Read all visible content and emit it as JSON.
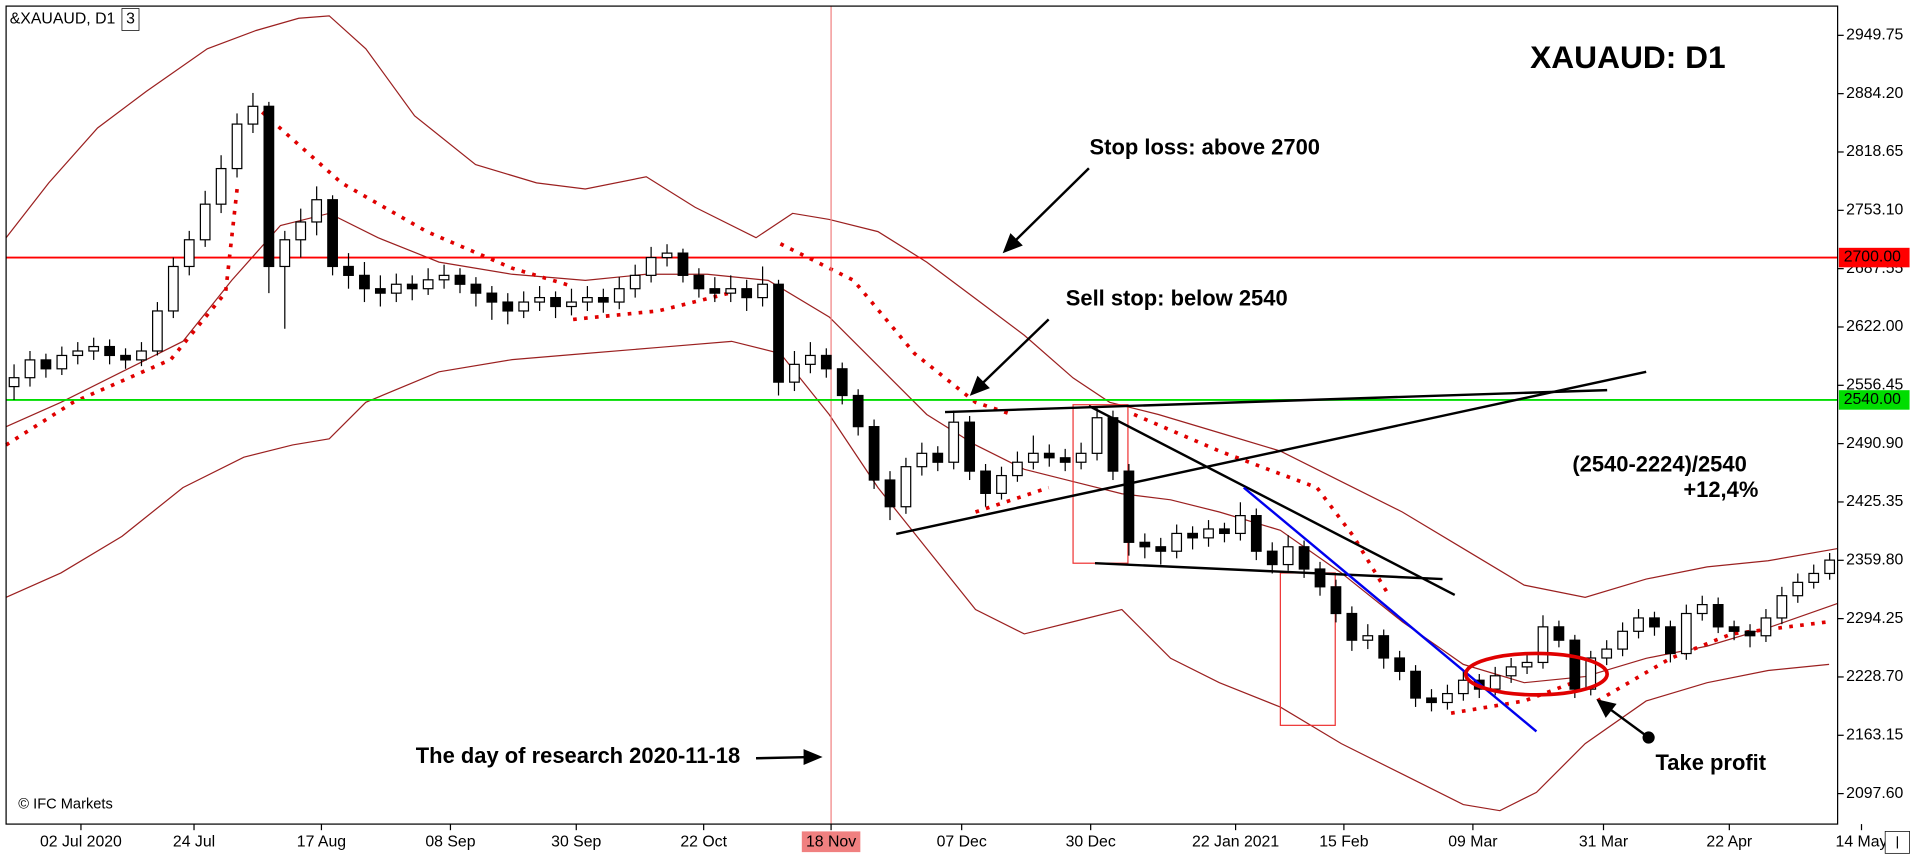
{
  "chart_data": {
    "type": "candlestick",
    "title": "XAUAUD: D1",
    "symbol": "&XAUAUD, D1",
    "window": "3",
    "credit": "© IFC Markets",
    "annotations": [
      "Stop loss: above 2700",
      "Sell stop: below 2540",
      "(2540-2224)/2540",
      "+12,4%",
      "Take profit",
      "The day of research 2020-11-18"
    ],
    "ylim": [
      2063.35,
      2982.6
    ],
    "yticks": [
      {
        "value": 2949.75,
        "label": "2949.75"
      },
      {
        "value": 2884.2,
        "label": "2884.20"
      },
      {
        "value": 2818.65,
        "label": "2818.65"
      },
      {
        "value": 2753.1,
        "label": "2753.10"
      },
      {
        "value": 2687.55,
        "label": "2687.55"
      },
      {
        "value": 2622,
        "label": "2622.00"
      },
      {
        "value": 2556.45,
        "label": "2556.45"
      },
      {
        "value": 2490.9,
        "label": "2490.90"
      },
      {
        "value": 2425.35,
        "label": "2425.35"
      },
      {
        "value": 2359.8,
        "label": "2359.80"
      },
      {
        "value": 2294.25,
        "label": "2294.25"
      },
      {
        "value": 2228.7,
        "label": "2228.70"
      },
      {
        "value": 2163.15,
        "label": "2163.15"
      },
      {
        "value": 2097.6,
        "label": "2097.60"
      }
    ],
    "xlim": [
      0,
      115
    ],
    "xticks": [
      {
        "value": 4.7,
        "label": "02 Jul 2020"
      },
      {
        "value": 11.8,
        "label": "24 Jul"
      },
      {
        "value": 19.8,
        "label": "17 Aug"
      },
      {
        "value": 27.9,
        "label": "08 Sep"
      },
      {
        "value": 35.8,
        "label": "30 Sep"
      },
      {
        "value": 43.8,
        "label": "22 Oct"
      },
      {
        "value": 51.8,
        "label": "18 Nov"
      },
      {
        "value": 60,
        "label": "07 Dec"
      },
      {
        "value": 68.1,
        "label": "30 Dec"
      },
      {
        "value": 77.2,
        "label": "22 Jan 2021"
      },
      {
        "value": 84,
        "label": "15 Feb"
      },
      {
        "value": 92.1,
        "label": "09 Mar"
      },
      {
        "value": 100.3,
        "label": "31 Mar"
      },
      {
        "value": 108.2,
        "label": "22 Apr"
      },
      {
        "value": 116.5,
        "label": "14 May"
      }
    ],
    "cursor_line": {
      "x": 51.8,
      "color": "#f08080"
    },
    "levels": [
      {
        "value": 2700,
        "label": "2700.00",
        "color": "#ff0000"
      },
      {
        "value": 2540,
        "label": "2540.00",
        "color": "#00dd00"
      }
    ],
    "bull_color": "#ffffff",
    "bear_color": "#000000",
    "candles": [
      [
        2555,
        2580,
        2540,
        2565
      ],
      [
        2565,
        2595,
        2555,
        2585
      ],
      [
        2585,
        2592,
        2565,
        2575
      ],
      [
        2575,
        2600,
        2568,
        2590
      ],
      [
        2590,
        2605,
        2580,
        2595
      ],
      [
        2595,
        2610,
        2585,
        2600
      ],
      [
        2600,
        2608,
        2580,
        2590
      ],
      [
        2590,
        2598,
        2575,
        2585
      ],
      [
        2585,
        2605,
        2578,
        2595
      ],
      [
        2595,
        2650,
        2590,
        2640
      ],
      [
        2640,
        2700,
        2632,
        2690
      ],
      [
        2690,
        2730,
        2680,
        2720
      ],
      [
        2720,
        2775,
        2712,
        2760
      ],
      [
        2760,
        2815,
        2750,
        2800
      ],
      [
        2800,
        2862,
        2790,
        2850
      ],
      [
        2850,
        2885,
        2840,
        2870
      ],
      [
        2870,
        2875,
        2660,
        2690
      ],
      [
        2690,
        2730,
        2620,
        2720
      ],
      [
        2720,
        2755,
        2700,
        2740
      ],
      [
        2740,
        2780,
        2725,
        2765
      ],
      [
        2765,
        2770,
        2680,
        2690
      ],
      [
        2690,
        2705,
        2665,
        2680
      ],
      [
        2680,
        2695,
        2650,
        2665
      ],
      [
        2665,
        2680,
        2645,
        2660
      ],
      [
        2660,
        2682,
        2650,
        2670
      ],
      [
        2670,
        2680,
        2652,
        2665
      ],
      [
        2665,
        2688,
        2658,
        2675
      ],
      [
        2675,
        2692,
        2665,
        2680
      ],
      [
        2680,
        2688,
        2660,
        2670
      ],
      [
        2670,
        2678,
        2645,
        2660
      ],
      [
        2660,
        2668,
        2630,
        2650
      ],
      [
        2650,
        2660,
        2625,
        2640
      ],
      [
        2640,
        2662,
        2632,
        2650
      ],
      [
        2650,
        2668,
        2640,
        2655
      ],
      [
        2655,
        2662,
        2632,
        2645
      ],
      [
        2645,
        2665,
        2635,
        2650
      ],
      [
        2650,
        2668,
        2640,
        2655
      ],
      [
        2655,
        2665,
        2638,
        2650
      ],
      [
        2650,
        2678,
        2642,
        2665
      ],
      [
        2665,
        2692,
        2655,
        2680
      ],
      [
        2680,
        2712,
        2672,
        2700
      ],
      [
        2700,
        2715,
        2690,
        2705
      ],
      [
        2705,
        2710,
        2672,
        2680
      ],
      [
        2680,
        2688,
        2655,
        2665
      ],
      [
        2665,
        2678,
        2650,
        2660
      ],
      [
        2660,
        2680,
        2650,
        2665
      ],
      [
        2665,
        2675,
        2640,
        2655
      ],
      [
        2655,
        2690,
        2645,
        2670
      ],
      [
        2670,
        2675,
        2545,
        2560
      ],
      [
        2560,
        2595,
        2550,
        2580
      ],
      [
        2580,
        2605,
        2570,
        2590
      ],
      [
        2590,
        2598,
        2565,
        2575
      ],
      [
        2575,
        2582,
        2535,
        2545
      ],
      [
        2545,
        2552,
        2500,
        2510
      ],
      [
        2510,
        2518,
        2440,
        2450
      ],
      [
        2450,
        2460,
        2405,
        2420
      ],
      [
        2420,
        2475,
        2412,
        2465
      ],
      [
        2465,
        2492,
        2455,
        2480
      ],
      [
        2480,
        2488,
        2460,
        2470
      ],
      [
        2470,
        2528,
        2462,
        2515
      ],
      [
        2515,
        2522,
        2450,
        2460
      ],
      [
        2460,
        2468,
        2420,
        2435
      ],
      [
        2435,
        2465,
        2428,
        2455
      ],
      [
        2455,
        2482,
        2448,
        2470
      ],
      [
        2470,
        2500,
        2462,
        2480
      ],
      [
        2480,
        2490,
        2465,
        2475
      ],
      [
        2475,
        2485,
        2460,
        2470
      ],
      [
        2470,
        2492,
        2462,
        2480
      ],
      [
        2480,
        2532,
        2472,
        2520
      ],
      [
        2520,
        2528,
        2450,
        2460
      ],
      [
        2460,
        2468,
        2365,
        2380
      ],
      [
        2380,
        2390,
        2362,
        2375
      ],
      [
        2375,
        2385,
        2355,
        2370
      ],
      [
        2370,
        2400,
        2362,
        2390
      ],
      [
        2390,
        2398,
        2372,
        2385
      ],
      [
        2385,
        2405,
        2375,
        2395
      ],
      [
        2395,
        2402,
        2380,
        2390
      ],
      [
        2390,
        2425,
        2382,
        2410
      ],
      [
        2410,
        2418,
        2360,
        2370
      ],
      [
        2370,
        2380,
        2345,
        2355
      ],
      [
        2355,
        2388,
        2348,
        2375
      ],
      [
        2375,
        2382,
        2340,
        2350
      ],
      [
        2350,
        2358,
        2320,
        2330
      ],
      [
        2330,
        2338,
        2290,
        2300
      ],
      [
        2300,
        2308,
        2258,
        2270
      ],
      [
        2270,
        2288,
        2260,
        2275
      ],
      [
        2275,
        2282,
        2238,
        2250
      ],
      [
        2250,
        2258,
        2225,
        2235
      ],
      [
        2235,
        2242,
        2195,
        2205
      ],
      [
        2205,
        2215,
        2190,
        2200
      ],
      [
        2200,
        2220,
        2192,
        2210
      ],
      [
        2210,
        2235,
        2202,
        2225
      ],
      [
        2225,
        2232,
        2205,
        2215
      ],
      [
        2215,
        2240,
        2208,
        2230
      ],
      [
        2230,
        2250,
        2222,
        2240
      ],
      [
        2240,
        2255,
        2232,
        2245
      ],
      [
        2245,
        2298,
        2238,
        2285
      ],
      [
        2285,
        2292,
        2262,
        2270
      ],
      [
        2270,
        2276,
        2205,
        2215
      ],
      [
        2215,
        2258,
        2208,
        2250
      ],
      [
        2250,
        2270,
        2242,
        2260
      ],
      [
        2260,
        2290,
        2252,
        2280
      ],
      [
        2280,
        2305,
        2272,
        2295
      ],
      [
        2295,
        2302,
        2275,
        2285
      ],
      [
        2285,
        2292,
        2245,
        2255
      ],
      [
        2255,
        2310,
        2248,
        2300
      ],
      [
        2300,
        2320,
        2292,
        2310
      ],
      [
        2310,
        2318,
        2278,
        2285
      ],
      [
        2285,
        2292,
        2270,
        2280
      ],
      [
        2280,
        2288,
        2262,
        2275
      ],
      [
        2275,
        2305,
        2268,
        2295
      ],
      [
        2295,
        2330,
        2288,
        2320
      ],
      [
        2320,
        2345,
        2312,
        2335
      ],
      [
        2335,
        2355,
        2328,
        2345
      ],
      [
        2345,
        2368,
        2338,
        2360
      ]
    ]
  }
}
